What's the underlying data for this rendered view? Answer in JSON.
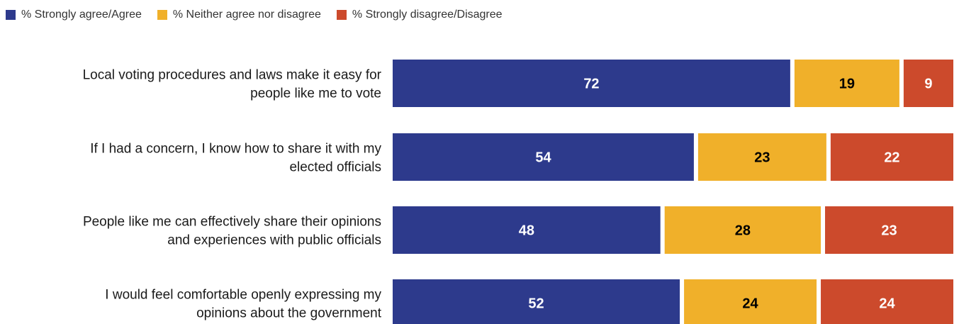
{
  "legend": {
    "agree": "% Strongly agree/Agree",
    "neutral": "% Neither agree nor disagree",
    "disagree": "% Strongly disagree/Disagree"
  },
  "colors": {
    "agree": "#2d3a8c",
    "neutral": "#f0b02a",
    "disagree": "#cc4a2c",
    "agree_text": "#ffffff",
    "neutral_text": "#000000",
    "disagree_text": "#ffffff"
  },
  "chart_data": {
    "type": "bar",
    "orientation": "horizontal",
    "stacked": true,
    "categories": [
      [
        "Local voting procedures and laws make it easy for",
        "people like me to vote"
      ],
      [
        "If I had a concern, I know how to share it with my",
        "elected officials"
      ],
      [
        "People like me can effectively share their opinions",
        "and experiences with public officials"
      ],
      [
        "I would feel comfortable openly expressing my",
        "opinions about the government"
      ]
    ],
    "series": [
      {
        "name": "% Strongly agree/Agree",
        "key": "agree",
        "values": [
          72,
          54,
          48,
          52
        ]
      },
      {
        "name": "% Neither agree nor disagree",
        "key": "neutral",
        "values": [
          19,
          23,
          28,
          24
        ]
      },
      {
        "name": "% Strongly disagree/Disagree",
        "key": "disagree",
        "values": [
          9,
          22,
          23,
          24
        ]
      }
    ],
    "legend_position": "top-left",
    "grid": false
  }
}
